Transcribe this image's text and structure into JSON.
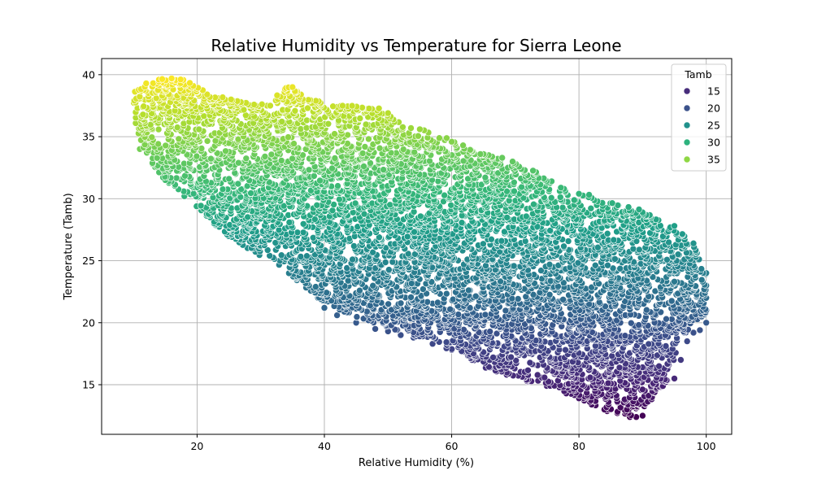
{
  "chart_data": {
    "type": "scatter",
    "title": "Relative Humidity vs Temperature for Sierra Leone",
    "xlabel": "Relative Humidity (%)",
    "ylabel": "Temperature (Tamb)",
    "xlim": [
      5,
      104
    ],
    "ylim": [
      11,
      41.3
    ],
    "xticks": [
      20,
      40,
      60,
      80,
      100
    ],
    "yticks": [
      15,
      20,
      25,
      30,
      35,
      40
    ],
    "grid": true,
    "hue": "Tamb",
    "colormap": "viridis",
    "hue_range": [
      12.3,
      39.8
    ],
    "legend": {
      "title": "Tamb",
      "position": "top-right",
      "entries": [
        {
          "label": "15",
          "color": "#472d7b"
        },
        {
          "label": "20",
          "color": "#3b528b"
        },
        {
          "label": "25",
          "color": "#21918c"
        },
        {
          "label": "30",
          "color": "#2db27d"
        },
        {
          "label": "35",
          "color": "#8fd744"
        }
      ]
    },
    "cloud_boundary": [
      [
        10,
        38.6
      ],
      [
        13,
        39.5
      ],
      [
        17,
        39.9
      ],
      [
        22,
        38.5
      ],
      [
        27,
        37.8
      ],
      [
        31,
        37.6
      ],
      [
        34,
        39.2
      ],
      [
        38,
        38.0
      ],
      [
        43,
        37.5
      ],
      [
        48,
        37.5
      ],
      [
        54,
        35.8
      ],
      [
        60,
        34.8
      ],
      [
        66,
        33.8
      ],
      [
        72,
        32.5
      ],
      [
        78,
        30.8
      ],
      [
        84,
        30.0
      ],
      [
        90,
        29.1
      ],
      [
        94,
        28.0
      ],
      [
        98,
        26.5
      ],
      [
        100,
        24.2
      ],
      [
        100,
        20.0
      ],
      [
        96,
        19.0
      ],
      [
        94,
        15.3
      ],
      [
        89,
        12.3
      ],
      [
        84,
        12.9
      ],
      [
        78,
        14.4
      ],
      [
        72,
        15.2
      ],
      [
        65,
        16.4
      ],
      [
        57,
        18.5
      ],
      [
        50,
        19.5
      ],
      [
        44,
        20.6
      ],
      [
        39,
        22.0
      ],
      [
        33,
        24.5
      ],
      [
        25,
        26.8
      ],
      [
        19,
        29.6
      ],
      [
        14,
        32.0
      ],
      [
        11,
        34.5
      ],
      [
        10,
        36.5
      ]
    ],
    "series": [
      {
        "x": [
          12,
          14,
          16,
          18,
          20,
          22,
          25,
          28,
          31,
          35
        ],
        "y": [
          39.3,
          39.6,
          39.7,
          39.2,
          38.6,
          38.2,
          37.7,
          37.6,
          37.5,
          39.0
        ]
      },
      {
        "x": [
          38,
          42,
          46,
          50,
          55,
          60,
          65,
          70,
          75,
          80,
          85,
          90,
          95,
          98
        ],
        "y": [
          37.7,
          37.4,
          37.3,
          36.9,
          35.6,
          34.6,
          33.6,
          32.5,
          31.3,
          30.4,
          29.6,
          28.9,
          27.8,
          26.4
        ]
      },
      {
        "x": [
          11,
          13,
          15,
          18,
          21,
          25,
          29,
          33,
          36,
          39
        ],
        "y": [
          34.0,
          32.8,
          31.5,
          30.2,
          29.2,
          27.6,
          26.3,
          25.0,
          23.8,
          22.0
        ]
      },
      {
        "x": [
          40,
          42,
          45,
          48,
          50,
          52,
          54,
          57,
          60,
          63
        ],
        "y": [
          21.2,
          20.6,
          20.0,
          19.5,
          19.3,
          19.0,
          18.8,
          18.3,
          17.8,
          17.1
        ]
      },
      {
        "x": [
          66,
          69,
          72,
          75,
          78,
          80,
          82,
          84,
          86,
          88,
          89,
          90
        ],
        "y": [
          16.4,
          15.9,
          15.4,
          14.9,
          14.3,
          13.9,
          13.4,
          13.0,
          12.7,
          12.4,
          12.4,
          12.5
        ]
      },
      {
        "x": [
          100,
          100,
          100,
          100,
          100,
          99,
          98,
          97,
          96,
          95
        ],
        "y": [
          24.0,
          23.0,
          22.0,
          21.0,
          20.0,
          19.4,
          19.2,
          18.5,
          17.0,
          15.5
        ]
      }
    ]
  }
}
